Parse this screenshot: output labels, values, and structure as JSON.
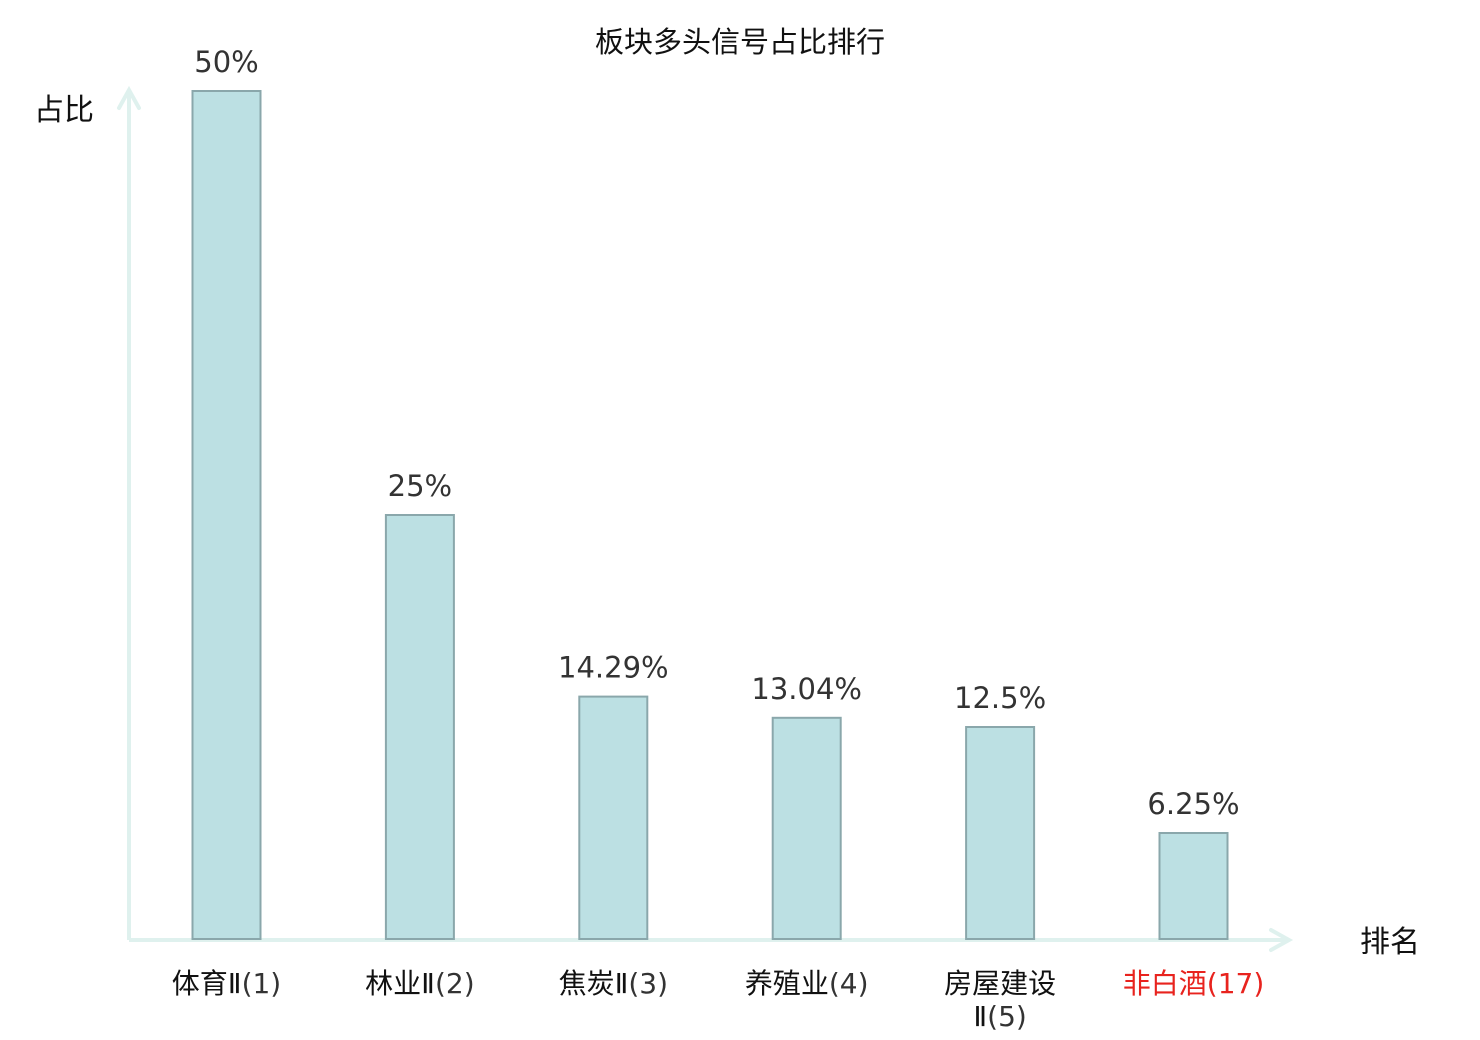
{
  "chart_data": {
    "type": "bar",
    "title": "板块多头信号占比排行",
    "ylabel": "占比",
    "xlabel": "排名",
    "categories": [
      {
        "name": "体育Ⅱ",
        "rank": "(1)",
        "highlight": false
      },
      {
        "name": "林业Ⅱ",
        "rank": "(2)",
        "highlight": false
      },
      {
        "name": "焦炭Ⅱ",
        "rank": "(3)",
        "highlight": false
      },
      {
        "name": "养殖业",
        "rank": "(4)",
        "highlight": false
      },
      {
        "name": "房屋建设Ⅱ",
        "rank": "(5)",
        "highlight": false
      },
      {
        "name": "非白酒",
        "rank": "(17)",
        "highlight": true
      }
    ],
    "values": [
      50,
      25,
      14.29,
      13.04,
      12.5,
      6.25
    ],
    "value_labels": [
      "50%",
      "25%",
      "14.29%",
      "13.04%",
      "12.5%",
      "6.25%"
    ],
    "ylim": [
      0,
      50
    ],
    "grid": false,
    "colors": {
      "bar_fill": "#bce0e3",
      "bar_stroke": "#8aa7ab",
      "axis": "#dff1ee",
      "text": "#333333",
      "label_text": "#111111",
      "highlight_text": "#e8231e"
    }
  }
}
